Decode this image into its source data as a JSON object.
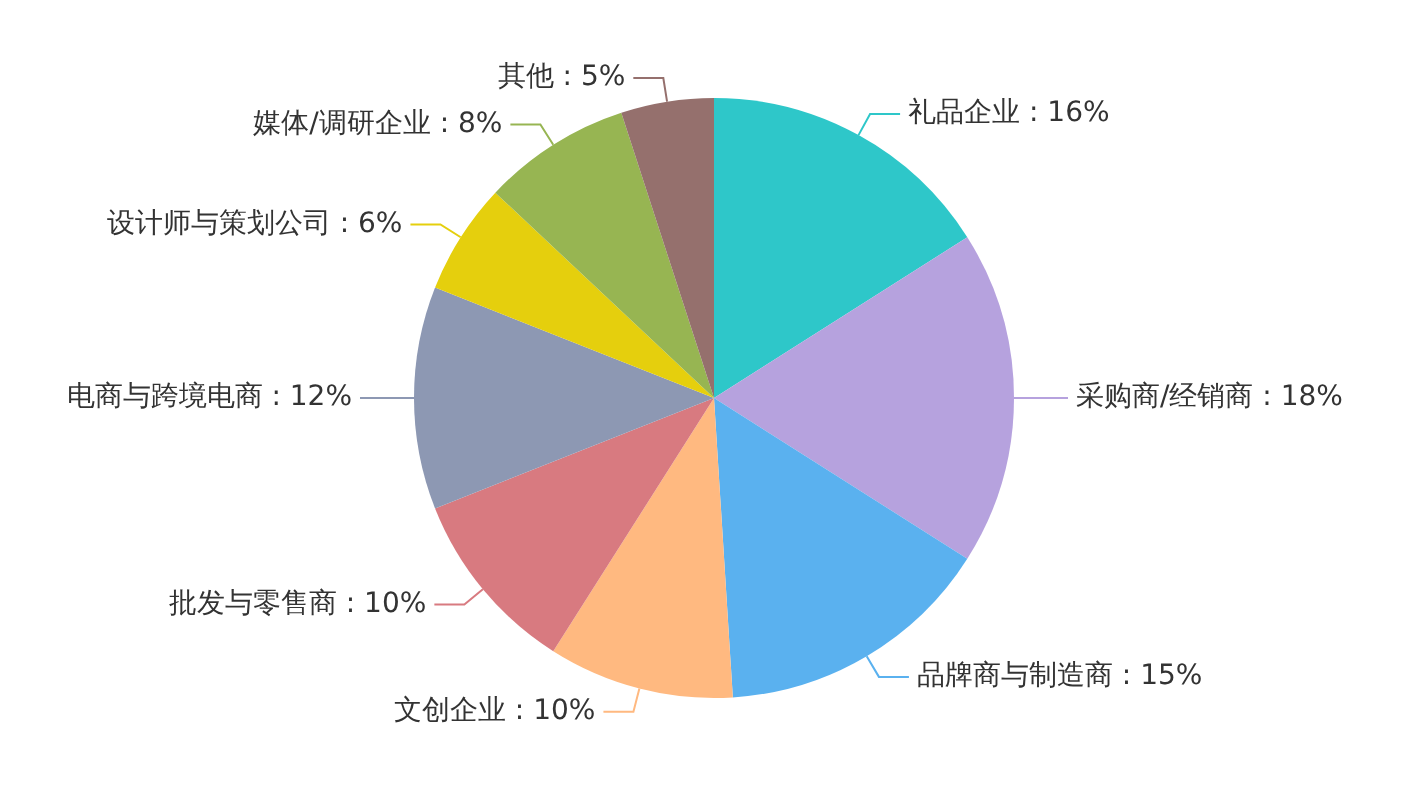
{
  "chart_data": {
    "type": "pie",
    "categories": [
      "礼品企业 : 16%",
      "采购商/经销商 : 18%",
      "品牌商与制造商 : 15%",
      "文创企业 : 10%",
      "批发与零售商 : 10%",
      "电商与跨境电商 : 12%",
      "设计师与策划公司 : 6%",
      "媒体/调研企业 : 8%",
      "其他 : 5%"
    ],
    "values": [
      16,
      18,
      15,
      10,
      10,
      12,
      6,
      8,
      5
    ],
    "colors": [
      "#2ec7c9",
      "#b6a2de",
      "#5ab1ef",
      "#ffb980",
      "#d87a80",
      "#8d98b3",
      "#e5cf0d",
      "#97b552",
      "#95706d"
    ],
    "legend": false
  }
}
